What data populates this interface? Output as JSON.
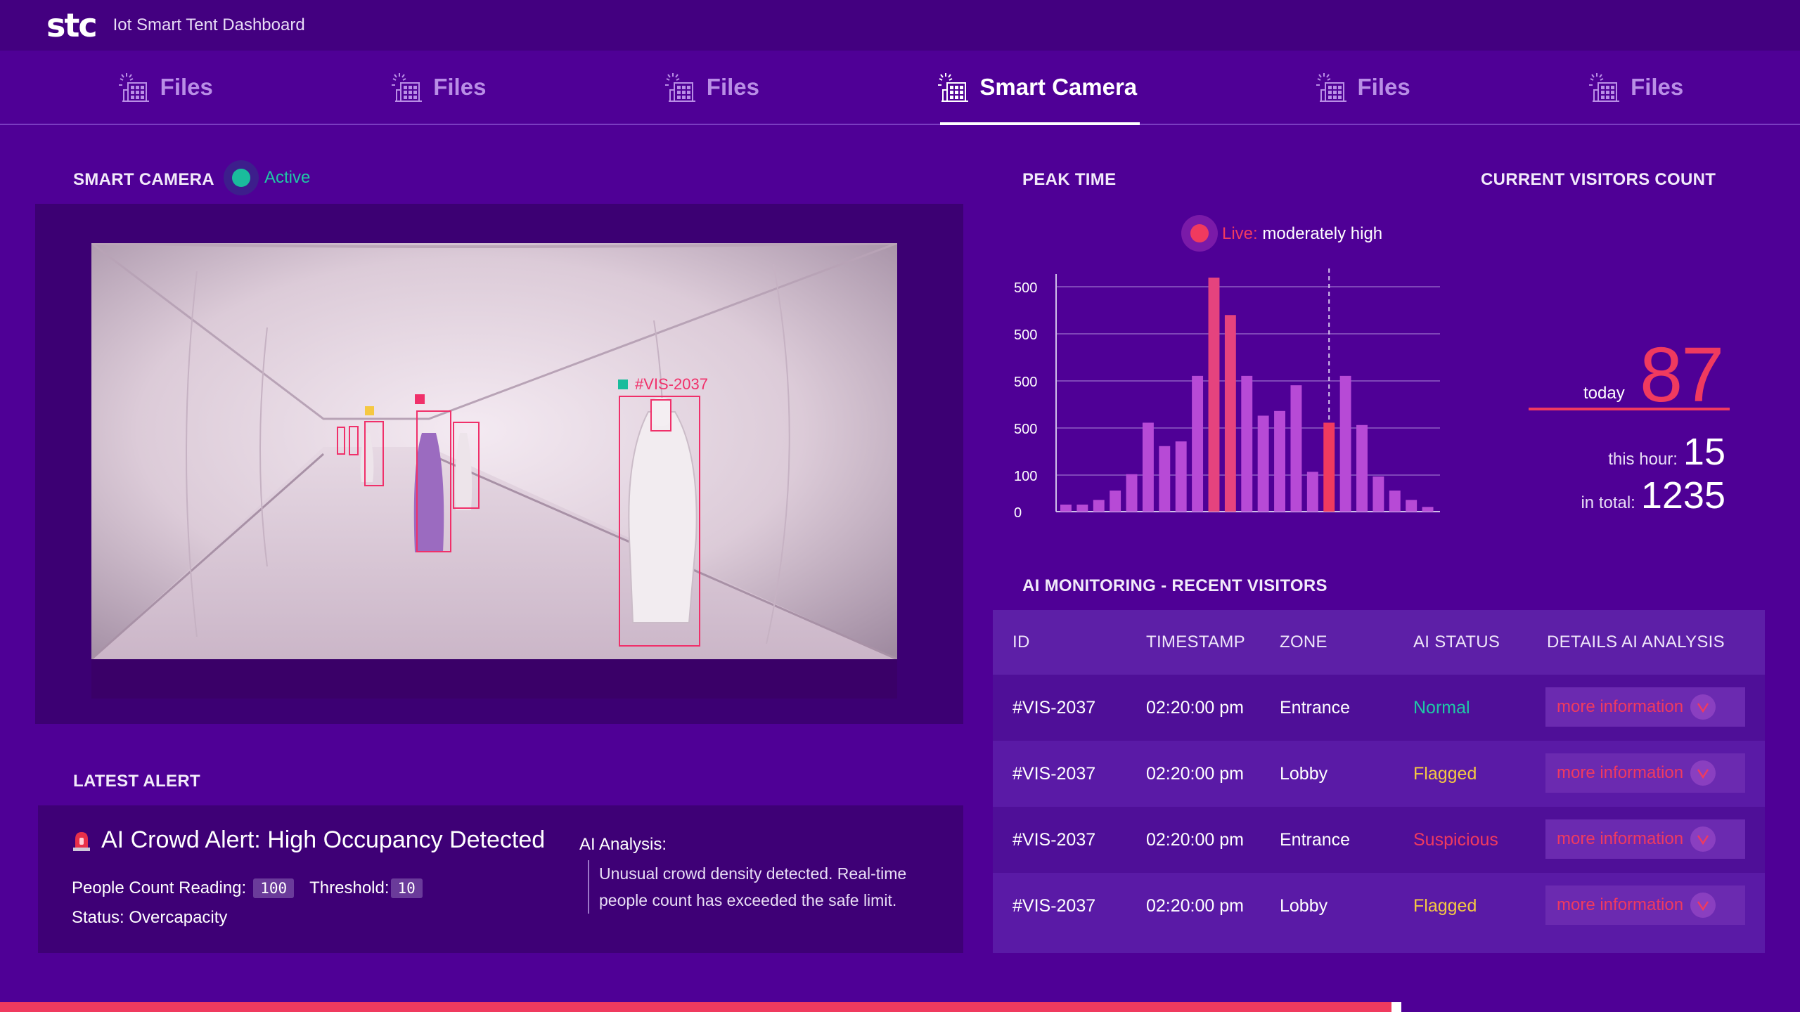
{
  "header": {
    "logo": "stc",
    "title": "Iot Smart Tent Dashboard"
  },
  "tabs": [
    {
      "label": "Files",
      "icon": "smart-building-icon",
      "active": false
    },
    {
      "label": "Files",
      "icon": "smart-building-icon",
      "active": false
    },
    {
      "label": "Files",
      "icon": "smart-building-icon",
      "active": false
    },
    {
      "label": "Smart Camera",
      "icon": "smart-building-icon",
      "active": true
    },
    {
      "label": "Files",
      "icon": "smart-building-icon",
      "active": false
    },
    {
      "label": "Files",
      "icon": "smart-building-icon",
      "active": false
    }
  ],
  "camera": {
    "title": "SMART CAMERA",
    "status": "Active",
    "detection_label": "#VIS-2037"
  },
  "alert": {
    "section_title": "LATEST ALERT",
    "title": "AI Crowd Alert: High Occupancy Detected",
    "people_count_label": "People Count Reading:",
    "people_count_value": "100",
    "threshold_label": "Threshold:",
    "threshold_value": "10",
    "status": "Status: Overcapacity",
    "ai_label": "AI Analysis:",
    "ai_text": "Unusual crowd density detected. Real-time people count has exceeded the safe limit."
  },
  "peak": {
    "title": "PEAK TIME",
    "live_label": "Live:",
    "live_value": "moderately high"
  },
  "chart_data": {
    "type": "bar",
    "y_tick_labels": [
      "500",
      "500",
      "500",
      "500",
      "100",
      "0"
    ],
    "values": [
      3,
      3,
      5,
      9,
      16,
      38,
      28,
      30,
      58,
      100,
      84,
      58,
      41,
      43,
      54,
      17,
      38,
      58,
      37,
      15,
      9,
      5,
      2
    ],
    "highlight_index": 16,
    "colors": {
      "bar": "#b74ad6",
      "peak_bar": "#e5437e",
      "highlight": "#f03a5f",
      "axis": "#cfc0e8"
    }
  },
  "visitors": {
    "title": "CURRENT VISITORS COUNT",
    "today_label": "today",
    "today": "87",
    "hour_label": "this hour:",
    "hour": "15",
    "total_label": "in total:",
    "total": "1235"
  },
  "monitoring": {
    "title": "AI MONITORING - RECENT VISITORS",
    "columns": [
      "ID",
      "TIMESTAMP",
      "ZONE",
      "AI STATUS",
      "DETAILS AI ANALYSIS"
    ],
    "rows": [
      {
        "id": "#VIS-2037",
        "time": "02:20:00 pm",
        "zone": "Entrance",
        "status": "Normal",
        "status_color": "#1fc8a6",
        "details": "more information"
      },
      {
        "id": "#VIS-2037",
        "time": "02:20:00 pm",
        "zone": "Lobby",
        "status": "Flagged",
        "status_color": "#f5c842",
        "details": "more information"
      },
      {
        "id": "#VIS-2037",
        "time": "02:20:00 pm",
        "zone": "Entrance",
        "status": "Suspicious",
        "status_color": "#f03a5f",
        "details": "more information"
      },
      {
        "id": "#VIS-2037",
        "time": "02:20:00 pm",
        "zone": "Lobby",
        "status": "Flagged",
        "status_color": "#f5c842",
        "details": "more information"
      }
    ]
  },
  "progress": {
    "fraction": 0.774
  }
}
